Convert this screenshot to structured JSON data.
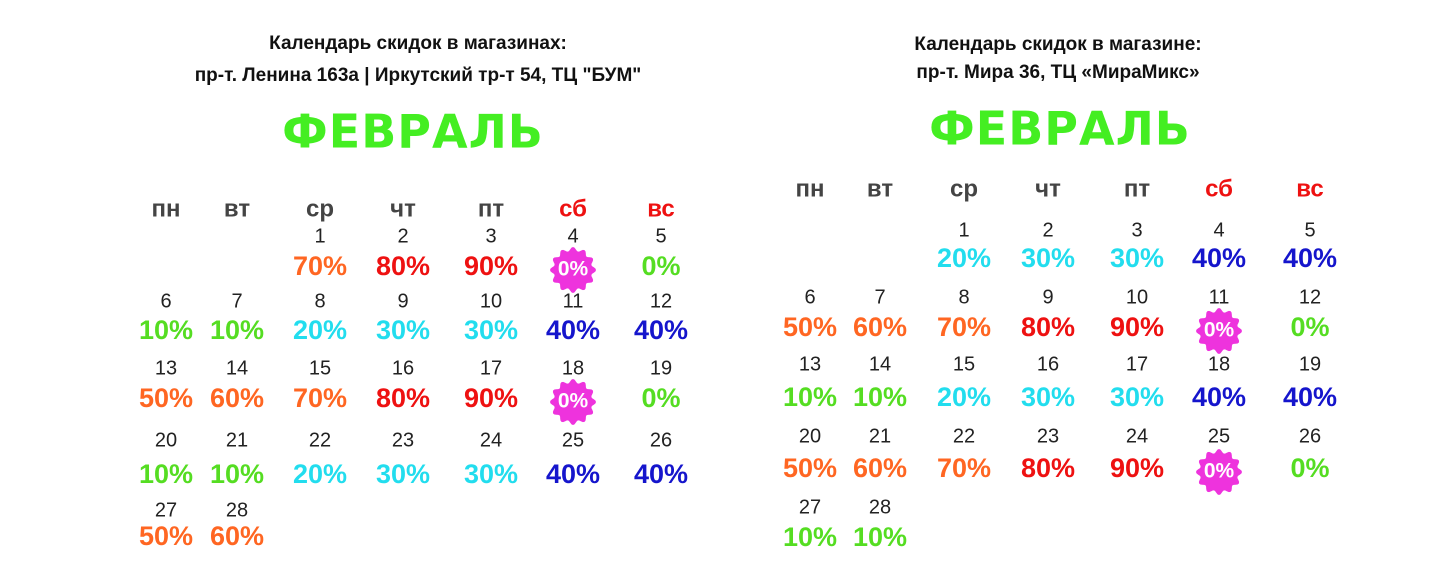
{
  "calendars": [
    {
      "title_lines": [
        "Календарь скидок в магазинах:",
        "пр-т. Ленина 163а  | Иркутский тр-т 54, ТЦ \"БУМ\""
      ],
      "month": "ФЕВРАЛЬ",
      "weekdays": [
        "пн",
        "вт",
        "ср",
        "чт",
        "пт",
        "сб",
        "вс"
      ],
      "weekday_colors": [
        "#444444",
        "#444444",
        "#444444",
        "#444444",
        "#444444",
        "#ee1111",
        "#ee1111"
      ],
      "weeks": [
        [
          null,
          null,
          {
            "day": 1,
            "discount": "70%",
            "color": "#ff6622"
          },
          {
            "day": 2,
            "discount": "80%",
            "color": "#ee1111"
          },
          {
            "day": 3,
            "discount": "90%",
            "color": "#ee1111"
          },
          {
            "day": 4,
            "discount": "0%",
            "color": "#ffffff",
            "badge": "#ee33dd"
          },
          {
            "day": 5,
            "discount": "0%",
            "color": "#55dd22"
          }
        ],
        [
          {
            "day": 6,
            "discount": "10%",
            "color": "#55dd22"
          },
          {
            "day": 7,
            "discount": "10%",
            "color": "#55dd22"
          },
          {
            "day": 8,
            "discount": "20%",
            "color": "#22ddee"
          },
          {
            "day": 9,
            "discount": "30%",
            "color": "#22ddee"
          },
          {
            "day": 10,
            "discount": "30%",
            "color": "#22ddee"
          },
          {
            "day": 11,
            "discount": "40%",
            "color": "#1515cc"
          },
          {
            "day": 12,
            "discount": "40%",
            "color": "#1515cc"
          }
        ],
        [
          {
            "day": 13,
            "discount": "50%",
            "color": "#ff6622"
          },
          {
            "day": 14,
            "discount": "60%",
            "color": "#ff6622"
          },
          {
            "day": 15,
            "discount": "70%",
            "color": "#ff6622"
          },
          {
            "day": 16,
            "discount": "80%",
            "color": "#ee1111"
          },
          {
            "day": 17,
            "discount": "90%",
            "color": "#ee1111"
          },
          {
            "day": 18,
            "discount": "0%",
            "color": "#ffffff",
            "badge": "#ee33dd"
          },
          {
            "day": 19,
            "discount": "0%",
            "color": "#55dd22"
          }
        ],
        [
          {
            "day": 20,
            "discount": "10%",
            "color": "#55dd22"
          },
          {
            "day": 21,
            "discount": "10%",
            "color": "#55dd22"
          },
          {
            "day": 22,
            "discount": "20%",
            "color": "#22ddee"
          },
          {
            "day": 23,
            "discount": "30%",
            "color": "#22ddee"
          },
          {
            "day": 24,
            "discount": "30%",
            "color": "#22ddee"
          },
          {
            "day": 25,
            "discount": "40%",
            "color": "#1515cc"
          },
          {
            "day": 26,
            "discount": "40%",
            "color": "#1515cc"
          }
        ],
        [
          {
            "day": 27,
            "discount": "50%",
            "color": "#ff6622"
          },
          {
            "day": 28,
            "discount": "60%",
            "color": "#ff6622"
          }
        ]
      ]
    },
    {
      "title_lines": [
        "Календарь скидок в магазине:",
        "пр-т. Мира 36, ТЦ «МираМикс»"
      ],
      "month": "ФЕВРАЛЬ",
      "weekdays": [
        "пн",
        "вт",
        "ср",
        "чт",
        "пт",
        "сб",
        "вс"
      ],
      "weekday_colors": [
        "#444444",
        "#444444",
        "#444444",
        "#444444",
        "#444444",
        "#ee1111",
        "#ee1111"
      ],
      "weeks": [
        [
          null,
          null,
          {
            "day": 1,
            "discount": "20%",
            "color": "#22ddee"
          },
          {
            "day": 2,
            "discount": "30%",
            "color": "#22ddee"
          },
          {
            "day": 3,
            "discount": "30%",
            "color": "#22ddee"
          },
          {
            "day": 4,
            "discount": "40%",
            "color": "#1515cc"
          },
          {
            "day": 5,
            "discount": "40%",
            "color": "#1515cc"
          }
        ],
        [
          {
            "day": 6,
            "discount": "50%",
            "color": "#ff6622"
          },
          {
            "day": 7,
            "discount": "60%",
            "color": "#ff6622"
          },
          {
            "day": 8,
            "discount": "70%",
            "color": "#ff6622"
          },
          {
            "day": 9,
            "discount": "80%",
            "color": "#ee1111"
          },
          {
            "day": 10,
            "discount": "90%",
            "color": "#ee1111"
          },
          {
            "day": 11,
            "discount": "0%",
            "color": "#ffffff",
            "badge": "#ee33dd"
          },
          {
            "day": 12,
            "discount": "0%",
            "color": "#55dd22"
          }
        ],
        [
          {
            "day": 13,
            "discount": "10%",
            "color": "#55dd22"
          },
          {
            "day": 14,
            "discount": "10%",
            "color": "#55dd22"
          },
          {
            "day": 15,
            "discount": "20%",
            "color": "#22ddee"
          },
          {
            "day": 16,
            "discount": "30%",
            "color": "#22ddee"
          },
          {
            "day": 17,
            "discount": "30%",
            "color": "#22ddee"
          },
          {
            "day": 18,
            "discount": "40%",
            "color": "#1515cc"
          },
          {
            "day": 19,
            "discount": "40%",
            "color": "#1515cc"
          }
        ],
        [
          {
            "day": 20,
            "discount": "50%",
            "color": "#ff6622"
          },
          {
            "day": 21,
            "discount": "60%",
            "color": "#ff6622"
          },
          {
            "day": 22,
            "discount": "70%",
            "color": "#ff6622"
          },
          {
            "day": 23,
            "discount": "80%",
            "color": "#ee1111"
          },
          {
            "day": 24,
            "discount": "90%",
            "color": "#ee1111"
          },
          {
            "day": 25,
            "discount": "0%",
            "color": "#ffffff",
            "badge": "#ee33dd"
          },
          {
            "day": 26,
            "discount": "0%",
            "color": "#55dd22"
          }
        ],
        [
          {
            "day": 27,
            "discount": "10%",
            "color": "#55dd22"
          },
          {
            "day": 28,
            "discount": "10%",
            "color": "#55dd22"
          }
        ]
      ]
    }
  ],
  "month_color": "#44ee22"
}
